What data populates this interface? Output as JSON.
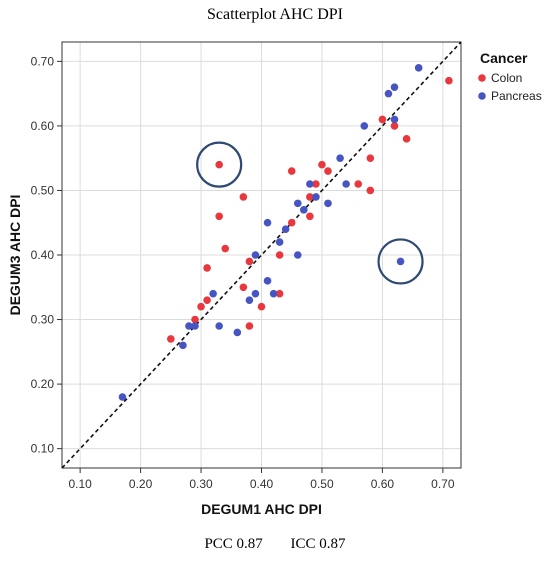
{
  "title": "Scatterplot AHC DPI",
  "footer": {
    "pcc": "PCC 0.87",
    "icc": "ICC 0.87"
  },
  "chart_data": {
    "type": "scatter",
    "xlabel": "DEGUM1 AHC DPI",
    "ylabel": "DEGUM3 AHC DPI",
    "xlim": [
      0.07,
      0.73
    ],
    "ylim": [
      0.07,
      0.73
    ],
    "xticks": [
      "0.10",
      "0.20",
      "0.30",
      "0.40",
      "0.50",
      "0.60",
      "0.70"
    ],
    "yticks": [
      "0.10",
      "0.20",
      "0.30",
      "0.40",
      "0.50",
      "0.60",
      "0.70"
    ],
    "grid": true,
    "legend": {
      "title": "Cancer",
      "position": "top-right"
    },
    "identity_line": true,
    "highlight_circles": [
      {
        "x": 0.33,
        "y": 0.54
      },
      {
        "x": 0.63,
        "y": 0.39
      }
    ],
    "series": [
      {
        "name": "Colon",
        "color": "#e8373d",
        "points": [
          [
            0.25,
            0.27
          ],
          [
            0.29,
            0.3
          ],
          [
            0.3,
            0.32
          ],
          [
            0.31,
            0.33
          ],
          [
            0.31,
            0.38
          ],
          [
            0.33,
            0.46
          ],
          [
            0.33,
            0.54
          ],
          [
            0.34,
            0.41
          ],
          [
            0.37,
            0.35
          ],
          [
            0.37,
            0.49
          ],
          [
            0.38,
            0.29
          ],
          [
            0.4,
            0.32
          ],
          [
            0.43,
            0.34
          ],
          [
            0.43,
            0.4
          ],
          [
            0.45,
            0.45
          ],
          [
            0.45,
            0.53
          ],
          [
            0.48,
            0.46
          ],
          [
            0.49,
            0.51
          ],
          [
            0.5,
            0.54
          ],
          [
            0.51,
            0.53
          ],
          [
            0.56,
            0.51
          ],
          [
            0.58,
            0.5
          ],
          [
            0.58,
            0.55
          ],
          [
            0.6,
            0.61
          ],
          [
            0.62,
            0.6
          ],
          [
            0.64,
            0.58
          ],
          [
            0.71,
            0.67
          ],
          [
            0.38,
            0.39
          ],
          [
            0.48,
            0.49
          ]
        ]
      },
      {
        "name": "Pancreas",
        "color": "#4655c2",
        "points": [
          [
            0.17,
            0.18
          ],
          [
            0.27,
            0.26
          ],
          [
            0.28,
            0.29
          ],
          [
            0.29,
            0.29
          ],
          [
            0.32,
            0.34
          ],
          [
            0.33,
            0.29
          ],
          [
            0.36,
            0.28
          ],
          [
            0.38,
            0.33
          ],
          [
            0.39,
            0.34
          ],
          [
            0.39,
            0.4
          ],
          [
            0.41,
            0.36
          ],
          [
            0.41,
            0.45
          ],
          [
            0.42,
            0.34
          ],
          [
            0.43,
            0.42
          ],
          [
            0.44,
            0.44
          ],
          [
            0.46,
            0.4
          ],
          [
            0.46,
            0.48
          ],
          [
            0.47,
            0.47
          ],
          [
            0.48,
            0.51
          ],
          [
            0.49,
            0.49
          ],
          [
            0.51,
            0.48
          ],
          [
            0.53,
            0.55
          ],
          [
            0.54,
            0.51
          ],
          [
            0.57,
            0.6
          ],
          [
            0.61,
            0.65
          ],
          [
            0.62,
            0.61
          ],
          [
            0.62,
            0.66
          ],
          [
            0.63,
            0.39
          ],
          [
            0.66,
            0.69
          ]
        ]
      }
    ]
  }
}
